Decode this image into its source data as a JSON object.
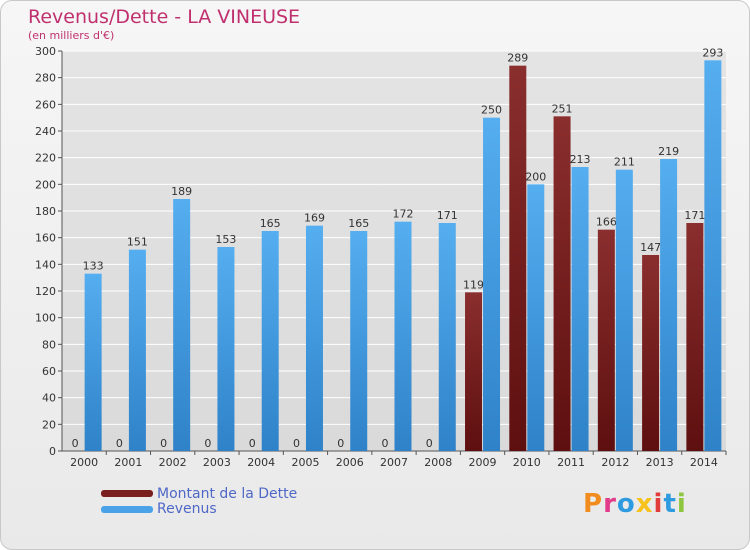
{
  "header": {
    "title": "Revenus/Dette - LA VINEUSE",
    "subtitle": "(en milliers d'€)"
  },
  "legend": {
    "debt_label": "Montant de la Dette",
    "revenue_label": "Revenus"
  },
  "logo": {
    "letters": [
      "P",
      "r",
      "o",
      "x",
      "i",
      "t",
      "i"
    ],
    "colors": [
      "#f28c1e",
      "#e23b8a",
      "#2e9be0",
      "#f6c21b",
      "#e23b3b",
      "#2e9be0",
      "#8ec63f"
    ]
  },
  "colors": {
    "debt": "#7a1e1e",
    "revenue": "#4aa3e8",
    "grid": "#ffffff",
    "title": "#c0306e"
  },
  "chart_data": {
    "type": "bar",
    "title": "Revenus/Dette - LA VINEUSE",
    "subtitle": "(en milliers d'€)",
    "categories": [
      "2000",
      "2001",
      "2002",
      "2003",
      "2004",
      "2005",
      "2006",
      "2007",
      "2008",
      "2009",
      "2010",
      "2011",
      "2012",
      "2013",
      "2014"
    ],
    "series": [
      {
        "name": "Montant de la Dette",
        "values": [
          0,
          0,
          0,
          0,
          0,
          0,
          0,
          0,
          0,
          119,
          289,
          251,
          166,
          147,
          171
        ]
      },
      {
        "name": "Revenus",
        "values": [
          133,
          151,
          189,
          153,
          165,
          169,
          165,
          172,
          171,
          250,
          200,
          213,
          211,
          219,
          293
        ]
      }
    ],
    "ylim": [
      0,
      300
    ],
    "yticks": [
      0,
      20,
      40,
      60,
      80,
      100,
      120,
      140,
      160,
      180,
      200,
      220,
      240,
      260,
      280,
      300
    ],
    "grid": true,
    "legend_position": "bottom-left"
  }
}
